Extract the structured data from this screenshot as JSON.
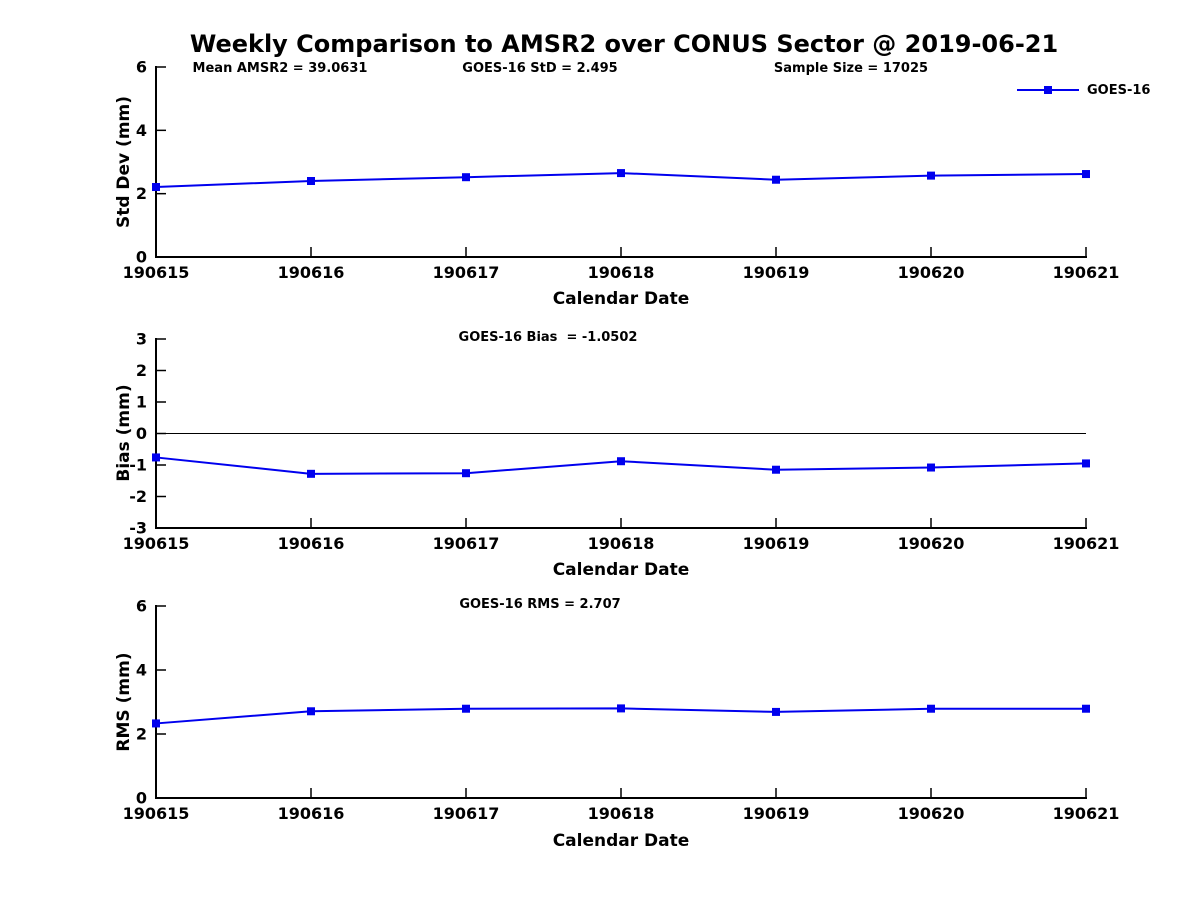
{
  "title": "Weekly Comparison to AMSR2 over CONUS Sector @ 2019-06-21",
  "colors": {
    "line": "#0000EE",
    "text": "#000000",
    "background": "#FFFFFF",
    "axis": "#000000"
  },
  "legend": {
    "label": "GOES-16"
  },
  "chart_data": [
    {
      "type": "line",
      "name": "std-dev",
      "annotations": [
        "Mean AMSR2 = 39.0631",
        "GOES-16 StD = 2.495",
        "Sample Size = 17025"
      ],
      "categories": [
        "190615",
        "190616",
        "190617",
        "190618",
        "190619",
        "190620",
        "190621"
      ],
      "series": [
        {
          "name": "GOES-16",
          "values": [
            2.21,
            2.4,
            2.52,
            2.65,
            2.44,
            2.57,
            2.62
          ]
        }
      ],
      "xlabel": "Calendar Date",
      "ylabel": "Std Dev (mm)",
      "ylim": [
        0,
        6
      ],
      "yticks": [
        0,
        2,
        4,
        6
      ],
      "grid": false,
      "zero_line": false,
      "legend_entries": [
        "GOES-16"
      ],
      "legend_position": "top-right"
    },
    {
      "type": "line",
      "name": "bias",
      "annotations": [
        "GOES-16 Bias  = -1.0502"
      ],
      "categories": [
        "190615",
        "190616",
        "190617",
        "190618",
        "190619",
        "190620",
        "190621"
      ],
      "series": [
        {
          "name": "GOES-16",
          "values": [
            -0.76,
            -1.28,
            -1.26,
            -0.88,
            -1.15,
            -1.08,
            -0.95
          ]
        }
      ],
      "xlabel": "Calendar Date",
      "ylabel": "Bias (mm)",
      "ylim": [
        -3,
        3
      ],
      "yticks": [
        -3,
        -2,
        -1,
        0,
        1,
        2,
        3
      ],
      "grid": false,
      "zero_line": true
    },
    {
      "type": "line",
      "name": "rms",
      "annotations": [
        "GOES-16 RMS = 2.707"
      ],
      "categories": [
        "190615",
        "190616",
        "190617",
        "190618",
        "190619",
        "190620",
        "190621"
      ],
      "series": [
        {
          "name": "GOES-16",
          "values": [
            2.33,
            2.71,
            2.79,
            2.8,
            2.69,
            2.79,
            2.79
          ]
        }
      ],
      "xlabel": "Calendar Date",
      "ylabel": "RMS (mm)",
      "ylim": [
        0,
        6
      ],
      "yticks": [
        0,
        2,
        4,
        6
      ],
      "grid": false,
      "zero_line": false
    }
  ]
}
